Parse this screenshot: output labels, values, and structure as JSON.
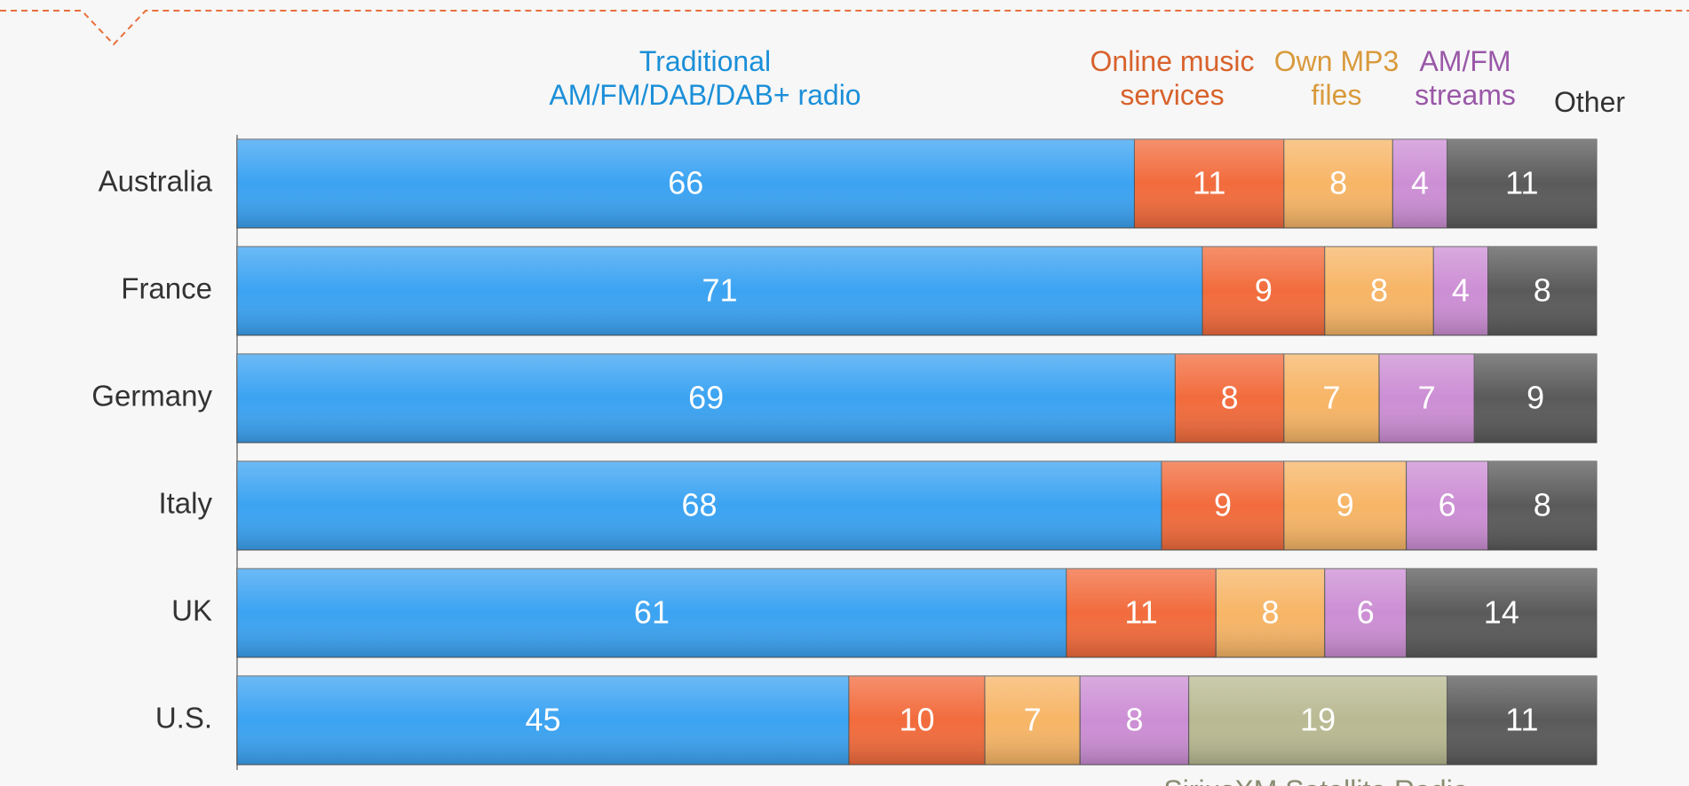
{
  "chart_data": {
    "type": "stacked-bar",
    "orientation": "horizontal",
    "categories": [
      "Australia",
      "France",
      "Germany",
      "Italy",
      "UK",
      "U.S."
    ],
    "xlim": [
      0,
      100
    ],
    "series": [
      {
        "name": "Traditional AM/FM/DAB/DAB+ radio",
        "color": "#3ba3f2",
        "text_color": "#1b8fd8",
        "values": [
          66,
          71,
          69,
          68,
          61,
          45
        ]
      },
      {
        "name": "Online music services",
        "color": "#f26b3c",
        "text_color": "#d8622c",
        "values": [
          11,
          9,
          8,
          9,
          11,
          10
        ]
      },
      {
        "name": "Own MP3 files",
        "color": "#f7b566",
        "text_color": "#d99a3c",
        "values": [
          8,
          8,
          7,
          9,
          8,
          7
        ]
      },
      {
        "name": "AM/FM streams",
        "color": "#cc8ed4",
        "text_color": "#9a58a8",
        "values": [
          4,
          4,
          7,
          6,
          6,
          8
        ]
      },
      {
        "name": "SiriusXM Satellite Radio",
        "color": "#b9ba92",
        "text_color": "#8b8b72",
        "values": [
          null,
          null,
          null,
          null,
          null,
          19
        ]
      },
      {
        "name": "Other",
        "color": "#5a5a5a",
        "text_color": "#333333",
        "values": [
          11,
          8,
          9,
          8,
          14,
          11
        ]
      }
    ]
  }
}
